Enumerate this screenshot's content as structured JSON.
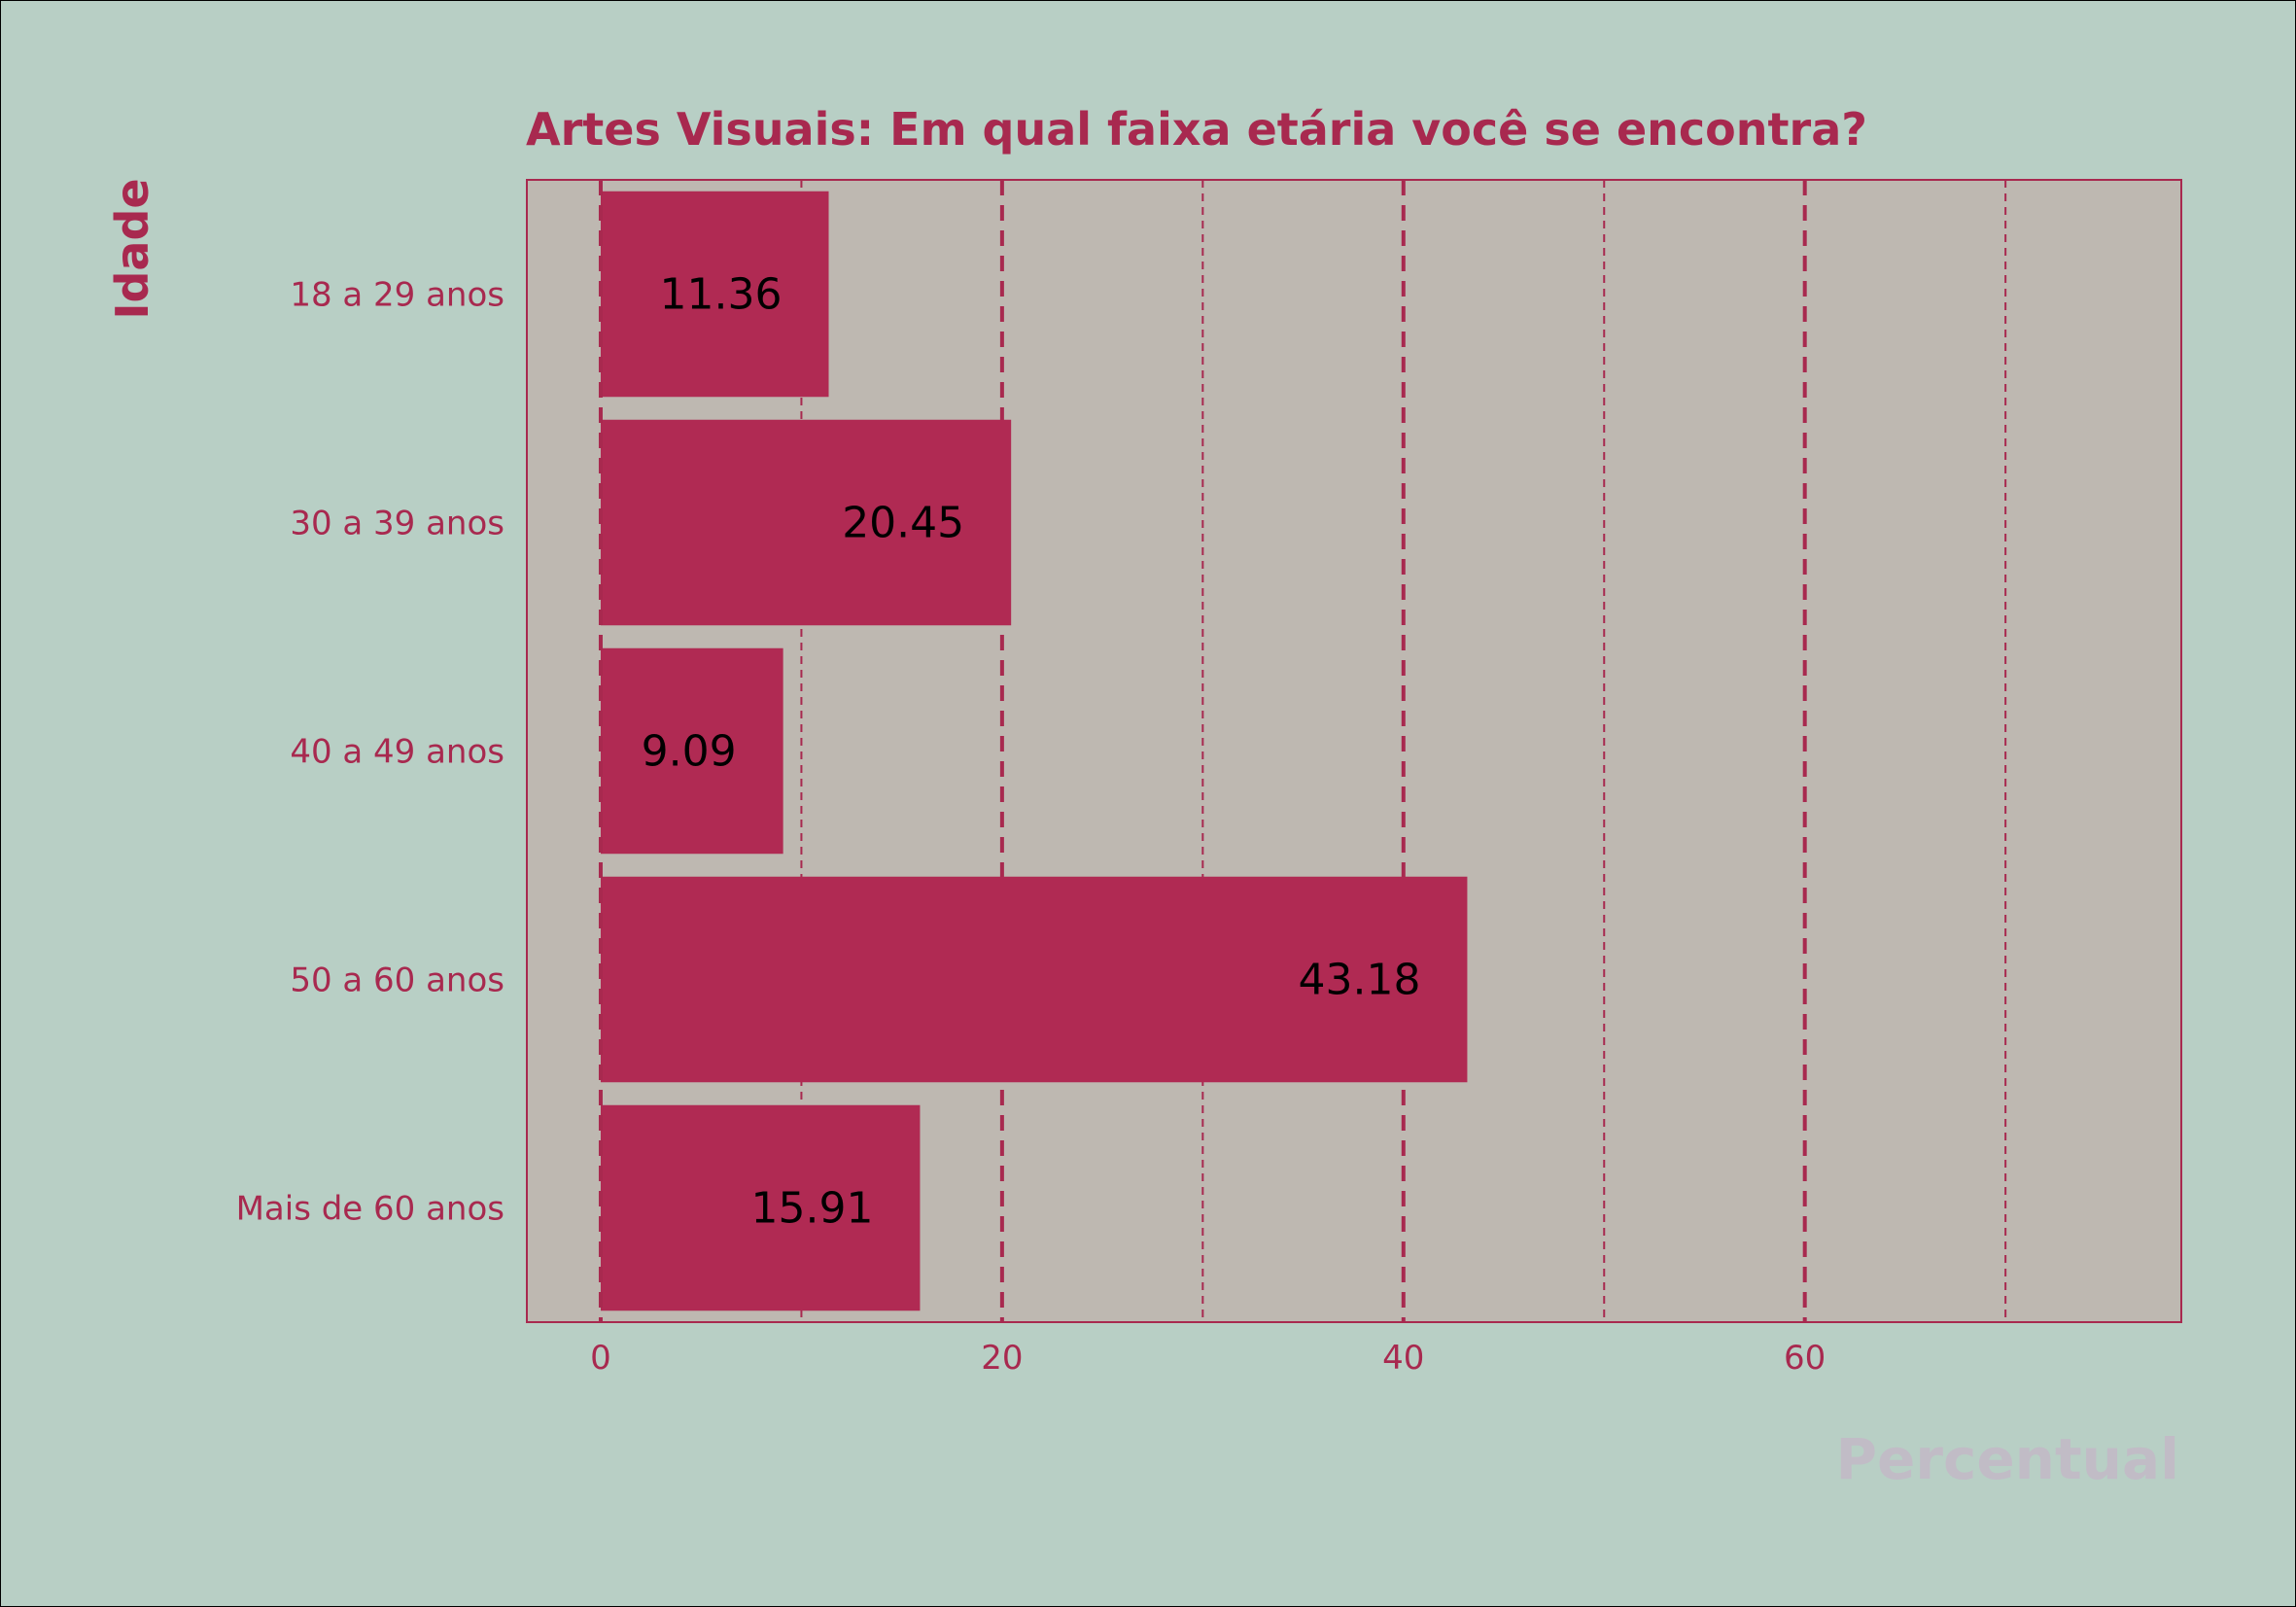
{
  "chart_data": {
    "type": "bar",
    "orientation": "horizontal",
    "title": "Artes Visuais: Em qual faixa etária você se encontra?",
    "xlabel": "Percentual",
    "ylabel": "Idade",
    "categories": [
      "18 a 29 anos",
      "30 a 39 anos",
      "40 a 49 anos",
      "50 a 60 anos",
      "Mais de 60 anos"
    ],
    "values": [
      11.36,
      20.45,
      9.09,
      43.18,
      15.91
    ],
    "value_labels": [
      "11.36",
      "20.45",
      "9.09",
      "43.18",
      "15.91"
    ],
    "xlim": [
      -3.68,
      78.76
    ],
    "xticks": [
      0,
      20,
      40,
      60
    ],
    "xtick_labels": [
      "0",
      "20",
      "40",
      "60"
    ],
    "minor_xticks": [
      10,
      30,
      50,
      70
    ],
    "grid": "vertical dashed",
    "colors": {
      "figure_bg": "#b8cfc5",
      "plot_bg": "#beb8b1",
      "bar": "#b02a53",
      "accent": "#a8294f",
      "value_text": "#000000",
      "xlabel_text": "#c1bcc6"
    }
  }
}
